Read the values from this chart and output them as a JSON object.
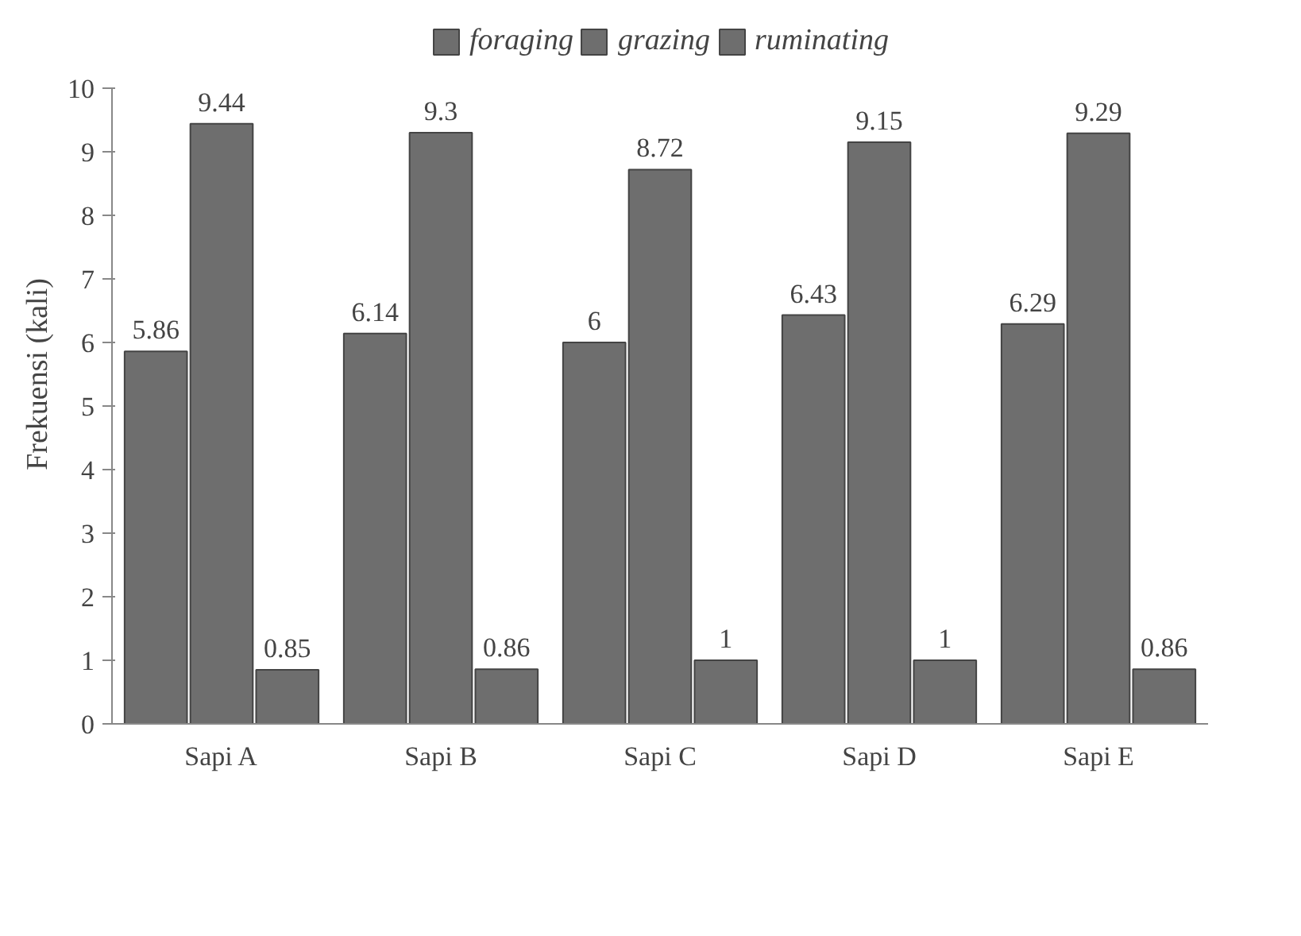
{
  "chart_data": {
    "type": "bar",
    "categories": [
      "Sapi A",
      "Sapi B",
      "Sapi C",
      "Sapi D",
      "Sapi E"
    ],
    "ylabel": "Frekuensi (kali)",
    "series": [
      {
        "name": "foraging",
        "color": "#6e6e6e",
        "values": [
          5.86,
          6.14,
          6,
          6.43,
          6.29
        ]
      },
      {
        "name": "grazing",
        "color": "#6e6e6e",
        "values": [
          9.44,
          9.3,
          8.72,
          9.15,
          9.29
        ]
      },
      {
        "name": "ruminating",
        "color": "#6e6e6e",
        "values": [
          0.85,
          0.86,
          1,
          1,
          0.86
        ]
      }
    ],
    "ylim": [
      0,
      10
    ],
    "yticks": [
      0,
      1,
      2,
      3,
      4,
      5,
      6,
      7,
      8,
      9,
      10
    ],
    "data_labels": true,
    "legend": "top",
    "grid": false
  }
}
